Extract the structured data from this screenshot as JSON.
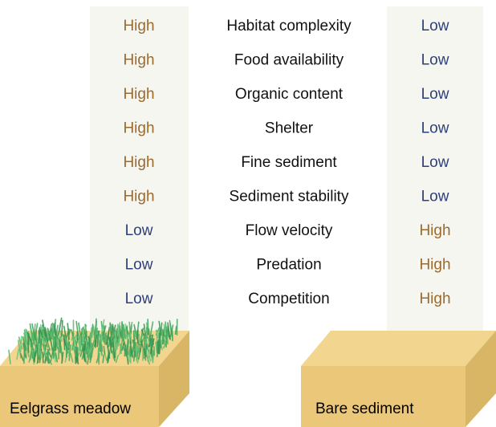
{
  "rows": [
    {
      "factor": "Habitat complexity",
      "eelgrass": "High",
      "bare": "Low"
    },
    {
      "factor": "Food availability",
      "eelgrass": "High",
      "bare": "Low"
    },
    {
      "factor": "Organic content",
      "eelgrass": "High",
      "bare": "Low"
    },
    {
      "factor": "Shelter",
      "eelgrass": "High",
      "bare": "Low"
    },
    {
      "factor": "Fine sediment",
      "eelgrass": "High",
      "bare": "Low"
    },
    {
      "factor": "Sediment stability",
      "eelgrass": "High",
      "bare": "Low"
    },
    {
      "factor": "Flow velocity",
      "eelgrass": "Low",
      "bare": "High"
    },
    {
      "factor": "Predation",
      "eelgrass": "Low",
      "bare": "High"
    },
    {
      "factor": "Competition",
      "eelgrass": "Low",
      "bare": "High"
    }
  ],
  "level_colors": {
    "High": "#9a6a2e",
    "Low": "#2e3f7a"
  },
  "eelgrass_label": "Eelgrass meadow",
  "bare_label": "Bare sediment"
}
